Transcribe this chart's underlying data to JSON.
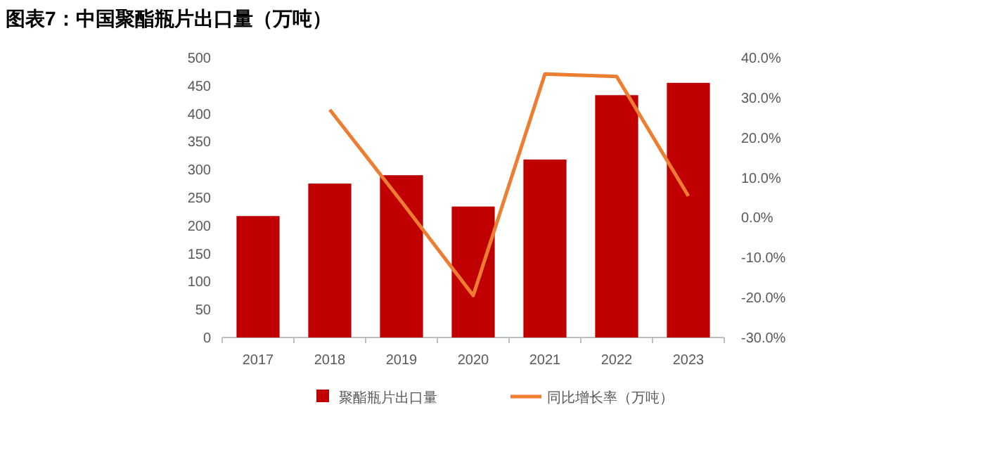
{
  "chart_data": {
    "type": "bar",
    "title": "图表7：中国聚酯瓶片出口量（万吨）",
    "categories": [
      "2017",
      "2018",
      "2019",
      "2020",
      "2021",
      "2022",
      "2023"
    ],
    "series": [
      {
        "name": "聚酯瓶片出口量",
        "color": "#c00000",
        "values": [
          217,
          275,
          290,
          234,
          318,
          433,
          455
        ]
      },
      {
        "name": "同比增长率（万吨）",
        "type": "line",
        "axis": "y2",
        "color": "#ed7d31",
        "values": [
          null,
          27.0,
          4.0,
          -19.5,
          35.9,
          35.3,
          5.4
        ]
      }
    ],
    "ylim": [
      0,
      500
    ],
    "yticks": [
      0,
      50,
      100,
      150,
      200,
      250,
      300,
      350,
      400,
      450,
      500
    ],
    "y2lim": [
      -30,
      40
    ],
    "y2ticks": [
      {
        "value": -30,
        "label": "-30.0%"
      },
      {
        "value": -20,
        "label": "-20.0%"
      },
      {
        "value": -10,
        "label": "-10.0%"
      },
      {
        "value": 0,
        "label": "0.0%"
      },
      {
        "value": 10,
        "label": "10.0%"
      },
      {
        "value": 20,
        "label": "20.0%"
      },
      {
        "value": 30,
        "label": "30.0%"
      },
      {
        "value": 40,
        "label": "40.0%"
      }
    ],
    "legend": "bottom",
    "grid": false
  }
}
